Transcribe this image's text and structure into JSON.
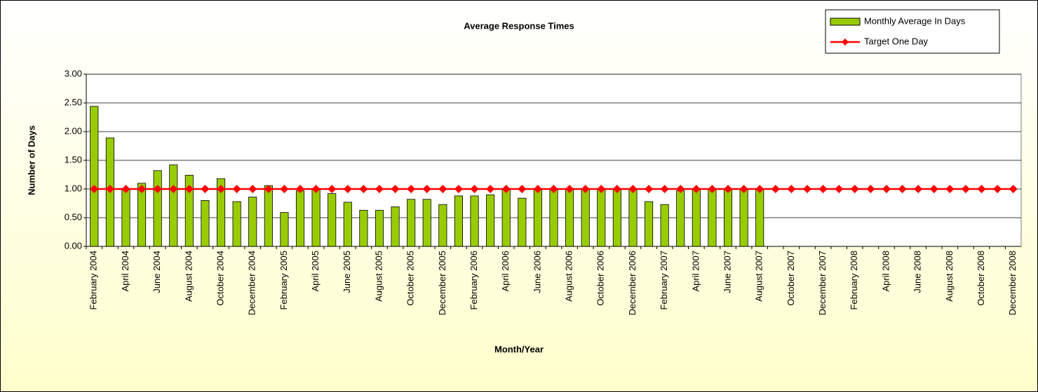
{
  "chart_data": {
    "type": "bar",
    "title": "Average Response Times",
    "x_label": "Month/Year",
    "y_label": "Number of Days",
    "categories": [
      "February 2004",
      null,
      "April 2004",
      null,
      "June 2004",
      null,
      "August 2004",
      null,
      "October 2004",
      null,
      "December 2004",
      null,
      "February 2005",
      null,
      "April 2005",
      null,
      "June 2005",
      null,
      "August 2005",
      null,
      "October 2005",
      null,
      "December 2005",
      null,
      "February 2006",
      null,
      "April 2006",
      null,
      "June 2006",
      null,
      "August 2006",
      null,
      "October 2006",
      null,
      "December 2006",
      null,
      "February 2007",
      null,
      "April 2007",
      null,
      "June 2007",
      null,
      "August 2007",
      null,
      "October 2007",
      null,
      "December 2007",
      null,
      "February 2008",
      null,
      "April 2008",
      null,
      "June 2008",
      null,
      "August 2008",
      null,
      "October 2008",
      null,
      "December 2008"
    ],
    "series": [
      {
        "name": "Monthly Average In Days",
        "type": "bar",
        "color": "#99cc00",
        "values": [
          2.44,
          1.89,
          1.0,
          1.1,
          1.32,
          1.42,
          1.24,
          0.8,
          1.18,
          0.78,
          0.86,
          1.06,
          0.59,
          0.97,
          1.0,
          0.92,
          0.77,
          0.63,
          0.63,
          0.69,
          0.82,
          0.82,
          0.73,
          0.88,
          0.88,
          0.9,
          1.0,
          0.84,
          1.0,
          1.0,
          1.0,
          1.0,
          1.0,
          1.0,
          1.0,
          0.78,
          0.73,
          0.97,
          1.0,
          1.0,
          1.0,
          1.0,
          1.0,
          null,
          null,
          null,
          null,
          null,
          null,
          null,
          null,
          null,
          null,
          null,
          null,
          null,
          null,
          null,
          null
        ]
      },
      {
        "name": "Target One Day",
        "type": "line",
        "color": "#ff0000",
        "values": [
          1,
          1,
          1,
          1,
          1,
          1,
          1,
          1,
          1,
          1,
          1,
          1,
          1,
          1,
          1,
          1,
          1,
          1,
          1,
          1,
          1,
          1,
          1,
          1,
          1,
          1,
          1,
          1,
          1,
          1,
          1,
          1,
          1,
          1,
          1,
          1,
          1,
          1,
          1,
          1,
          1,
          1,
          1,
          1,
          1,
          1,
          1,
          1,
          1,
          1,
          1,
          1,
          1,
          1,
          1,
          1,
          1,
          1,
          1
        ]
      }
    ],
    "ylim": [
      0,
      3
    ],
    "yticks": [
      {
        "value": 0,
        "label": "0.00"
      },
      {
        "value": 0.5,
        "label": "0.50"
      },
      {
        "value": 1,
        "label": "1.00"
      },
      {
        "value": 1.5,
        "label": "1.50"
      },
      {
        "value": 2,
        "label": "2.00"
      },
      {
        "value": 2.5,
        "label": "2.50"
      },
      {
        "value": 3,
        "label": "3.00"
      }
    ],
    "grid": true,
    "legend": "top-right"
  }
}
